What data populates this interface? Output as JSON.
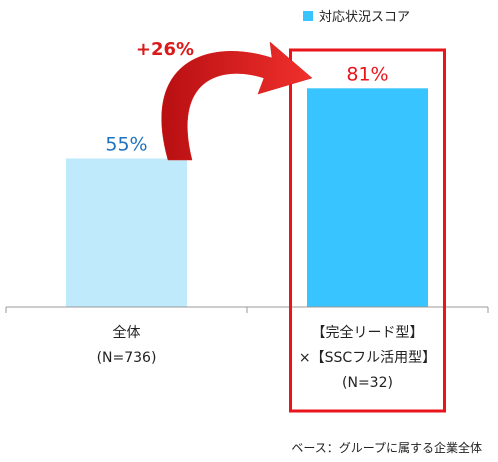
{
  "chart_data": {
    "type": "bar",
    "categories": [
      [
        "全体",
        "(N=736)"
      ],
      [
        "【完全リード型】",
        "×【SSCフル活用型】",
        "(N=32)"
      ]
    ],
    "series": [
      {
        "name": "対応状況スコア",
        "values": [
          55,
          81
        ],
        "value_labels": [
          "55%",
          "81%"
        ]
      }
    ],
    "ylim": [
      0,
      100
    ],
    "grid": false,
    "legend": "top-right",
    "annotation": "+26%",
    "footnote": "ベース：グループに属する企業全体",
    "colors": {
      "bar_base": "#bfeafb",
      "bar_highlight": "#38c4ff",
      "legend_swatch": "#38c4ff",
      "label_base": "#1f72bf",
      "label_highlight": "#e8151b",
      "highlight_frame": "#e8151b",
      "arrow": "#d91a1a",
      "axis": "#9a9a9a",
      "text": "#222222"
    }
  }
}
